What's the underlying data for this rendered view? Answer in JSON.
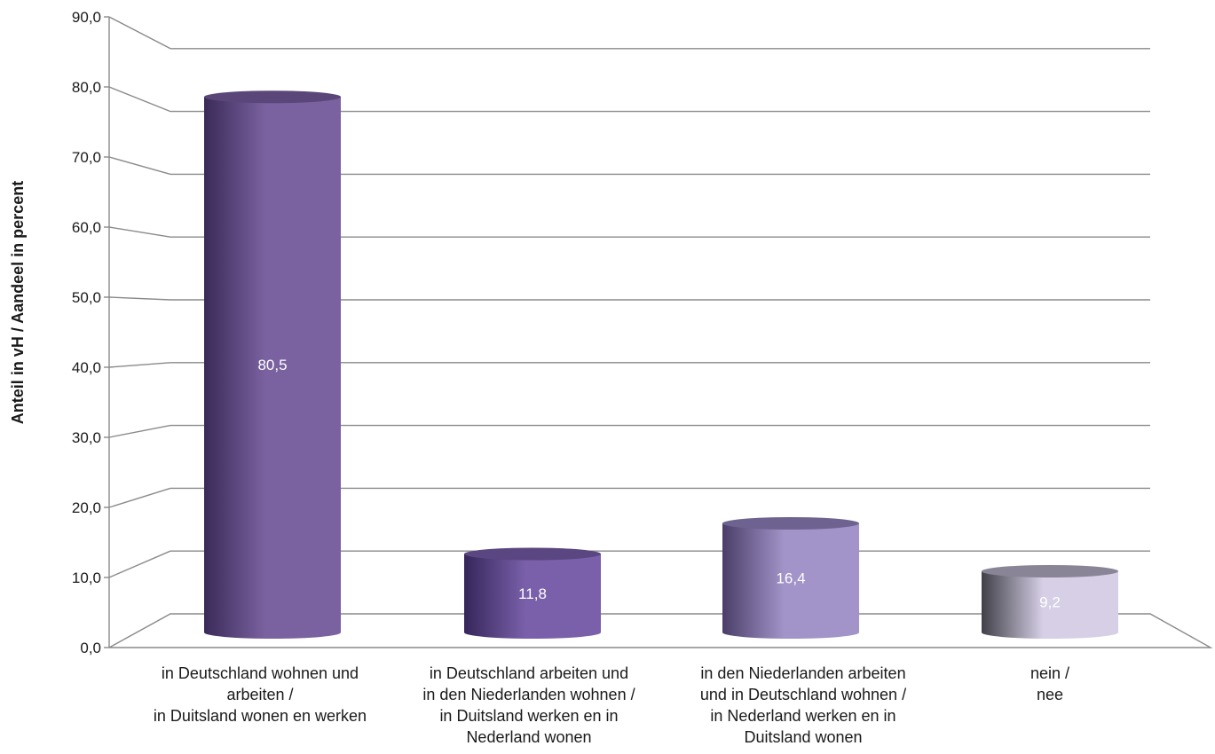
{
  "chart_data": {
    "type": "bar",
    "style": "3d-cylinder",
    "title": "",
    "xlabel": "",
    "ylabel": "Anteil in vH / Aandeel in percent",
    "ylim": [
      0,
      90
    ],
    "yticks": [
      "0,0",
      "10,0",
      "20,0",
      "30,0",
      "40,0",
      "50,0",
      "60,0",
      "70,0",
      "80,0",
      "90,0"
    ],
    "grid": true,
    "legend": "none",
    "categories": [
      [
        "in Deutschland wohnen und",
        "arbeiten /",
        "in Duitsland wonen en werken"
      ],
      [
        "in Deutschland arbeiten und",
        "in den Niederlanden wohnen /",
        "in Duitsland werken en in",
        "Nederland wonen"
      ],
      [
        "in den Niederlanden arbeiten",
        "und in Deutschland wohnen /",
        "in Nederland werken en in",
        "Duitsland wonen"
      ],
      [
        "nein /",
        "nee"
      ]
    ],
    "values": [
      80.5,
      11.8,
      16.4,
      9.2
    ],
    "data_labels": [
      "80,5",
      "11,8",
      "16,4",
      "9,2"
    ],
    "colors": [
      {
        "dark": "#3a2a58",
        "light": "#7a62a0",
        "top": "#5a4678"
      },
      {
        "dark": "#35265a",
        "light": "#7a60aa",
        "top": "#5a4680"
      },
      {
        "dark": "#4a3e68",
        "light": "#a293c8",
        "top": "#6e6290"
      },
      {
        "dark": "#404048",
        "light": "#d6cfe6",
        "top": "#8a8596"
      }
    ]
  }
}
